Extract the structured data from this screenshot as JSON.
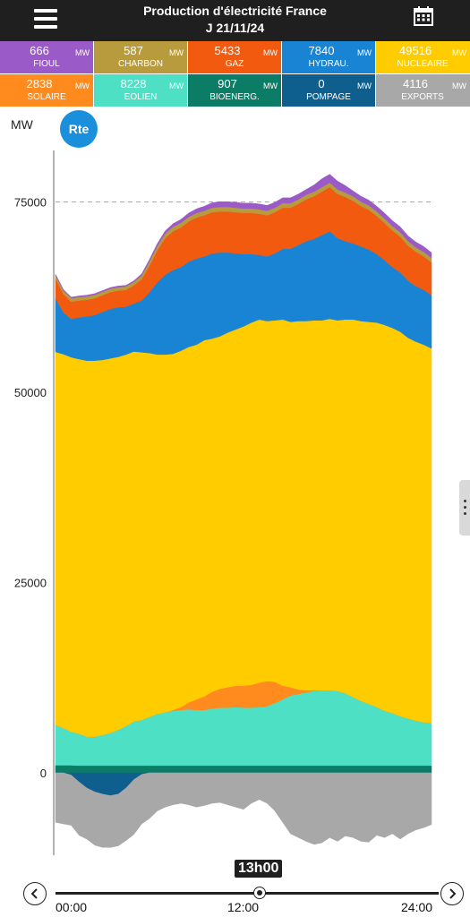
{
  "header": {
    "title": "Production d'électricité France",
    "subtitle": "J 21/11/24",
    "menu_icon": "hamburger-menu-icon",
    "calendar_icon": "calendar-icon"
  },
  "tiles": [
    {
      "value": "666",
      "unit": "MW",
      "label": "FIOUL",
      "color": "#9a5bc8"
    },
    {
      "value": "587",
      "unit": "MW",
      "label": "CHARBON",
      "color": "#b89b3c"
    },
    {
      "value": "5433",
      "unit": "MW",
      "label": "GAZ",
      "color": "#f25a0f"
    },
    {
      "value": "7840",
      "unit": "MW",
      "label": "HYDRAU.",
      "color": "#1a84d4"
    },
    {
      "value": "49516",
      "unit": "MW",
      "label": "NUCLEAIRE",
      "color": "#ffcc00"
    },
    {
      "value": "2838",
      "unit": "MW",
      "label": "SOLAIRE",
      "color": "#ff8a1e"
    },
    {
      "value": "8228",
      "unit": "MW",
      "label": "EOLIEN",
      "color": "#4ee0c4"
    },
    {
      "value": "907",
      "unit": "MW",
      "label": "BIOENERG.",
      "color": "#0b7d66"
    },
    {
      "value": "0",
      "unit": "MW",
      "label": "POMPAGE",
      "color": "#0e5f8e"
    },
    {
      "value": "4116",
      "unit": "MW",
      "label": "EXPORTS",
      "color": "#a8a8a8"
    }
  ],
  "logo": {
    "text": "Rte",
    "color": "#1a8fdc"
  },
  "chart_data": {
    "type": "area",
    "ylabel": "MW",
    "yticks": [
      0,
      25000,
      50000,
      75000
    ],
    "ylim": [
      -12000,
      82000
    ],
    "grid": "dashed at each y tick",
    "x": [
      "00:00",
      "00:30",
      "01:00",
      "01:30",
      "02:00",
      "02:30",
      "03:00",
      "03:30",
      "04:00",
      "04:30",
      "05:00",
      "05:30",
      "06:00",
      "06:30",
      "07:00",
      "07:30",
      "08:00",
      "08:30",
      "09:00",
      "09:30",
      "10:00",
      "10:30",
      "11:00",
      "11:30",
      "12:00",
      "12:30",
      "13:00",
      "13:30",
      "14:00",
      "14:30",
      "15:00",
      "15:30",
      "16:00",
      "16:30",
      "17:00",
      "17:30",
      "18:00",
      "18:30",
      "19:00",
      "19:30",
      "20:00",
      "20:30",
      "21:00",
      "21:30",
      "22:00",
      "22:30",
      "23:00",
      "23:30",
      "24:00"
    ],
    "xticks": [
      "00:00",
      "12:00",
      "24:00"
    ],
    "current_time": "13h00",
    "series": [
      {
        "name": "BIOENERG.",
        "color": "#0b7d66",
        "values": [
          1000,
          1000,
          1000,
          950,
          950,
          950,
          950,
          950,
          950,
          950,
          950,
          950,
          950,
          950,
          950,
          950,
          950,
          950,
          950,
          950,
          950,
          950,
          950,
          950,
          950,
          950,
          950,
          950,
          950,
          950,
          950,
          950,
          950,
          950,
          950,
          950,
          950,
          950,
          950,
          950,
          950,
          950,
          950,
          950,
          950,
          950,
          950,
          950,
          950
        ]
      },
      {
        "name": "EOLIEN",
        "color": "#4ee0c4",
        "values": [
          5300,
          4900,
          4400,
          4200,
          3800,
          3800,
          4000,
          4300,
          4700,
          5200,
          5800,
          6000,
          6400,
          6800,
          7000,
          7200,
          7300,
          7400,
          7300,
          7300,
          7500,
          7600,
          7600,
          7700,
          7600,
          7600,
          7700,
          7800,
          8200,
          8700,
          9200,
          9400,
          9600,
          9800,
          9900,
          9900,
          9800,
          9500,
          9000,
          8500,
          8100,
          7700,
          7200,
          6900,
          6500,
          6200,
          5900,
          5700,
          5600
        ]
      },
      {
        "name": "SOLAIRE",
        "color": "#ff8a1e",
        "values": [
          0,
          0,
          0,
          0,
          0,
          0,
          0,
          0,
          0,
          0,
          0,
          0,
          0,
          0,
          0,
          100,
          400,
          900,
          1400,
          1800,
          2200,
          2500,
          2700,
          2800,
          2900,
          3000,
          3200,
          3300,
          2800,
          1800,
          1100,
          600,
          300,
          100,
          0,
          0,
          0,
          0,
          0,
          0,
          0,
          0,
          0,
          0,
          0,
          0,
          0,
          0,
          0
        ]
      },
      {
        "name": "NUCLEAIRE",
        "color": "#ffcc00",
        "values": [
          49000,
          49100,
          49200,
          49200,
          49400,
          49400,
          49300,
          49200,
          49000,
          48800,
          48600,
          48300,
          47800,
          47200,
          47000,
          46800,
          46800,
          46700,
          46600,
          46800,
          46400,
          46300,
          46600,
          46800,
          47200,
          47600,
          47700,
          47300,
          47500,
          48100,
          48000,
          48400,
          48500,
          48600,
          48600,
          48800,
          48700,
          49100,
          49600,
          49900,
          50200,
          50500,
          50700,
          50600,
          50500,
          50000,
          49800,
          49600,
          49200
        ]
      },
      {
        "name": "HYDRAU.",
        "color": "#1a84d4",
        "values": [
          7000,
          5500,
          5000,
          5500,
          5800,
          6000,
          6300,
          6500,
          6500,
          6300,
          6300,
          6800,
          8000,
          9500,
          10500,
          11000,
          11000,
          11200,
          11300,
          11000,
          11200,
          11000,
          10500,
          10000,
          9500,
          9000,
          8500,
          8500,
          8800,
          9300,
          9600,
          10000,
          10500,
          10700,
          11200,
          11500,
          10800,
          10300,
          10000,
          9800,
          9500,
          9000,
          8500,
          8000,
          7800,
          7500,
          7300,
          7200,
          7000
        ]
      },
      {
        "name": "GAZ",
        "color": "#f25a0f",
        "values": [
          2600,
          2400,
          2300,
          2200,
          2200,
          2200,
          2200,
          2200,
          2200,
          2200,
          2400,
          2800,
          3500,
          4200,
          4800,
          5100,
          5200,
          5300,
          5400,
          5400,
          5400,
          5400,
          5400,
          5400,
          5400,
          5400,
          5400,
          5400,
          5400,
          5400,
          5400,
          5400,
          5500,
          5600,
          5700,
          5800,
          5800,
          5800,
          5600,
          5300,
          5200,
          5000,
          4900,
          4800,
          4700,
          4600,
          4500,
          4400,
          4300
        ]
      },
      {
        "name": "CHARBON",
        "color": "#b89b3c",
        "values": [
          450,
          450,
          450,
          450,
          450,
          450,
          450,
          450,
          450,
          450,
          450,
          500,
          550,
          580,
          590,
          590,
          590,
          590,
          590,
          590,
          590,
          590,
          590,
          590,
          590,
          590,
          590,
          590,
          590,
          590,
          590,
          590,
          590,
          590,
          590,
          590,
          590,
          590,
          590,
          590,
          590,
          590,
          590,
          590,
          590,
          590,
          590,
          590,
          590
        ]
      },
      {
        "name": "FIOUL",
        "color": "#9a5bc8",
        "values": [
          150,
          150,
          150,
          150,
          150,
          150,
          150,
          150,
          150,
          150,
          150,
          200,
          250,
          300,
          350,
          400,
          450,
          500,
          550,
          600,
          650,
          700,
          700,
          700,
          700,
          700,
          700,
          700,
          700,
          700,
          700,
          700,
          700,
          900,
          1100,
          1100,
          1100,
          900,
          700,
          700,
          700,
          700,
          700,
          700,
          700,
          700,
          700,
          700,
          700
        ]
      },
      {
        "name": "POMPAGE",
        "color": "#0e5f8e",
        "values": [
          0,
          0,
          -300,
          -1200,
          -2000,
          -2500,
          -2800,
          -3000,
          -2800,
          -2000,
          -900,
          -200,
          0,
          0,
          0,
          0,
          0,
          0,
          0,
          0,
          0,
          0,
          0,
          0,
          0,
          0,
          0,
          0,
          0,
          0,
          0,
          0,
          0,
          0,
          0,
          0,
          0,
          0,
          0,
          0,
          0,
          0,
          0,
          0,
          0,
          0,
          0,
          0,
          0
        ]
      },
      {
        "name": "EXPORTS",
        "color": "#a8a8a8",
        "values": [
          -6500,
          -6700,
          -6600,
          -7000,
          -6700,
          -7000,
          -7000,
          -6800,
          -6800,
          -6900,
          -7200,
          -6500,
          -6000,
          -5000,
          -4500,
          -4200,
          -4000,
          -4200,
          -4500,
          -4300,
          -4000,
          -3900,
          -4200,
          -4500,
          -4800,
          -4000,
          -3500,
          -4000,
          -5000,
          -6500,
          -8000,
          -8500,
          -9000,
          -9400,
          -9200,
          -8500,
          -9000,
          -8300,
          -8500,
          -9000,
          -9100,
          -8200,
          -8500,
          -8000,
          -8700,
          -8000,
          -7500,
          -7200,
          -6800
        ]
      }
    ]
  },
  "timeline": {
    "current": "13h00",
    "start": "00:00",
    "mid": "12:00",
    "end": "24:00",
    "prev_icon": "chevron-left-icon",
    "next_icon": "chevron-right-icon"
  }
}
